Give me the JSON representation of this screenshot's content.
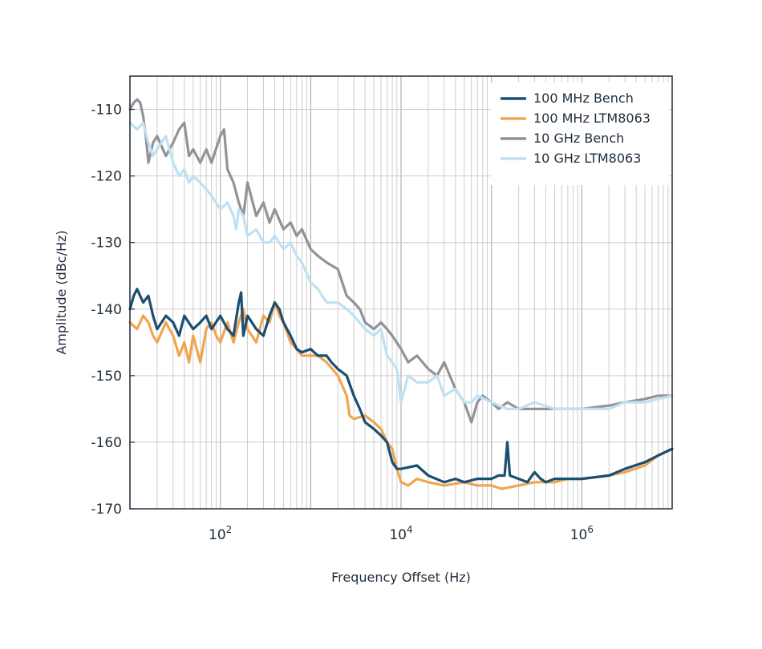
{
  "chart_data": {
    "type": "line",
    "title": "",
    "xlabel": "Frequency Offset (Hz)",
    "ylabel": "Amplitude (dBc/Hz)",
    "xscale": "log",
    "xlim": [
      10,
      10000000
    ],
    "ylim": [
      -170,
      -105
    ],
    "x_tick_labels": [
      {
        "value": 100,
        "base": "10",
        "exp": "2"
      },
      {
        "value": 10000,
        "base": "10",
        "exp": "4"
      },
      {
        "value": 1000000,
        "base": "10",
        "exp": "6"
      }
    ],
    "y_ticks": [
      -110,
      -120,
      -130,
      -140,
      -150,
      -160,
      -170
    ],
    "y_tick_labels": [
      "-110",
      "-120",
      "-130",
      "-140",
      "-150",
      "-160",
      "-170"
    ],
    "grid": true,
    "legend": "top-right",
    "series": [
      {
        "name": "100 MHz Bench",
        "color": "#1b4f72",
        "points": [
          [
            10,
            -140
          ],
          [
            11,
            -138
          ],
          [
            12,
            -137
          ],
          [
            14,
            -139
          ],
          [
            16,
            -138
          ],
          [
            18,
            -141
          ],
          [
            20,
            -143
          ],
          [
            25,
            -141
          ],
          [
            30,
            -142
          ],
          [
            35,
            -144
          ],
          [
            40,
            -141
          ],
          [
            50,
            -143
          ],
          [
            60,
            -142
          ],
          [
            70,
            -141
          ],
          [
            80,
            -143
          ],
          [
            100,
            -141
          ],
          [
            120,
            -143
          ],
          [
            140,
            -144
          ],
          [
            160,
            -139
          ],
          [
            170,
            -137.5
          ],
          [
            180,
            -144
          ],
          [
            200,
            -141
          ],
          [
            250,
            -143
          ],
          [
            300,
            -144
          ],
          [
            350,
            -141
          ],
          [
            400,
            -139
          ],
          [
            450,
            -140
          ],
          [
            500,
            -142
          ],
          [
            600,
            -144
          ],
          [
            700,
            -146
          ],
          [
            800,
            -146.5
          ],
          [
            1000,
            -146
          ],
          [
            1200,
            -147
          ],
          [
            1500,
            -147
          ],
          [
            1700,
            -148
          ],
          [
            2000,
            -149
          ],
          [
            2500,
            -150
          ],
          [
            3000,
            -153
          ],
          [
            3500,
            -155
          ],
          [
            4000,
            -157
          ],
          [
            5000,
            -158
          ],
          [
            6000,
            -159
          ],
          [
            7000,
            -160
          ],
          [
            8000,
            -163
          ],
          [
            9000,
            -164
          ],
          [
            10000,
            -164
          ],
          [
            15000,
            -163.5
          ],
          [
            20000,
            -165
          ],
          [
            30000,
            -166
          ],
          [
            40000,
            -165.5
          ],
          [
            50000,
            -166
          ],
          [
            70000,
            -165.5
          ],
          [
            100000,
            -165.5
          ],
          [
            120000,
            -165
          ],
          [
            140000,
            -165
          ],
          [
            150000,
            -160
          ],
          [
            160000,
            -165
          ],
          [
            200000,
            -165.5
          ],
          [
            250000,
            -166
          ],
          [
            300000,
            -164.5
          ],
          [
            350000,
            -165.5
          ],
          [
            400000,
            -166
          ],
          [
            500000,
            -165.5
          ],
          [
            700000,
            -165.5
          ],
          [
            1000000,
            -165.5
          ],
          [
            2000000,
            -165
          ],
          [
            3000000,
            -164
          ],
          [
            5000000,
            -163
          ],
          [
            7000000,
            -162
          ],
          [
            10000000,
            -161
          ]
        ]
      },
      {
        "name": "100 MHz LTM8063",
        "color": "#f0a550",
        "points": [
          [
            10,
            -142
          ],
          [
            12,
            -143
          ],
          [
            14,
            -141
          ],
          [
            16,
            -142
          ],
          [
            18,
            -144
          ],
          [
            20,
            -145
          ],
          [
            25,
            -142
          ],
          [
            30,
            -144
          ],
          [
            35,
            -147
          ],
          [
            40,
            -145
          ],
          [
            45,
            -148
          ],
          [
            50,
            -144
          ],
          [
            60,
            -148
          ],
          [
            70,
            -143
          ],
          [
            80,
            -142
          ],
          [
            90,
            -144
          ],
          [
            100,
            -145
          ],
          [
            120,
            -142
          ],
          [
            140,
            -145
          ],
          [
            160,
            -142
          ],
          [
            180,
            -140
          ],
          [
            200,
            -143
          ],
          [
            250,
            -145
          ],
          [
            300,
            -141
          ],
          [
            350,
            -142
          ],
          [
            400,
            -139
          ],
          [
            450,
            -141
          ],
          [
            500,
            -142
          ],
          [
            600,
            -145
          ],
          [
            700,
            -146
          ],
          [
            800,
            -147
          ],
          [
            1000,
            -147
          ],
          [
            1200,
            -147
          ],
          [
            1500,
            -148
          ],
          [
            2000,
            -150
          ],
          [
            2500,
            -153
          ],
          [
            2700,
            -156
          ],
          [
            3000,
            -156.5
          ],
          [
            4000,
            -156
          ],
          [
            5000,
            -157
          ],
          [
            6000,
            -158
          ],
          [
            7000,
            -160
          ],
          [
            8000,
            -161
          ],
          [
            9000,
            -164
          ],
          [
            10000,
            -166
          ],
          [
            12000,
            -166.5
          ],
          [
            15000,
            -165.5
          ],
          [
            20000,
            -166
          ],
          [
            30000,
            -166.5
          ],
          [
            50000,
            -166
          ],
          [
            70000,
            -166.5
          ],
          [
            100000,
            -166.5
          ],
          [
            130000,
            -167
          ],
          [
            200000,
            -166.5
          ],
          [
            300000,
            -166
          ],
          [
            500000,
            -166
          ],
          [
            700000,
            -165.5
          ],
          [
            1000000,
            -165.5
          ],
          [
            2000000,
            -165
          ],
          [
            3000000,
            -164.5
          ],
          [
            5000000,
            -163.5
          ],
          [
            7000000,
            -162
          ],
          [
            10000000,
            -161
          ]
        ]
      },
      {
        "name": "10 GHz Bench",
        "color": "#929396",
        "points": [
          [
            10,
            -110
          ],
          [
            11,
            -109
          ],
          [
            12,
            -108.5
          ],
          [
            13,
            -109
          ],
          [
            14,
            -111
          ],
          [
            15,
            -114
          ],
          [
            16,
            -118
          ],
          [
            18,
            -115
          ],
          [
            20,
            -114
          ],
          [
            25,
            -117
          ],
          [
            30,
            -115
          ],
          [
            35,
            -113
          ],
          [
            40,
            -112
          ],
          [
            45,
            -117
          ],
          [
            50,
            -116
          ],
          [
            60,
            -118
          ],
          [
            70,
            -116
          ],
          [
            80,
            -118
          ],
          [
            100,
            -114
          ],
          [
            110,
            -113
          ],
          [
            120,
            -119
          ],
          [
            140,
            -121
          ],
          [
            160,
            -124
          ],
          [
            180,
            -126
          ],
          [
            200,
            -121
          ],
          [
            250,
            -126
          ],
          [
            300,
            -124
          ],
          [
            350,
            -127
          ],
          [
            400,
            -125
          ],
          [
            500,
            -128
          ],
          [
            600,
            -127
          ],
          [
            700,
            -129
          ],
          [
            800,
            -128
          ],
          [
            1000,
            -131
          ],
          [
            1200,
            -132
          ],
          [
            1500,
            -133
          ],
          [
            2000,
            -134
          ],
          [
            2500,
            -138
          ],
          [
            3000,
            -139
          ],
          [
            3500,
            -140
          ],
          [
            4000,
            -142
          ],
          [
            5000,
            -143
          ],
          [
            6000,
            -142
          ],
          [
            7000,
            -143
          ],
          [
            8000,
            -144
          ],
          [
            10000,
            -146
          ],
          [
            12000,
            -148
          ],
          [
            15000,
            -147
          ],
          [
            20000,
            -149
          ],
          [
            25000,
            -150
          ],
          [
            30000,
            -148
          ],
          [
            40000,
            -152
          ],
          [
            50000,
            -154
          ],
          [
            60000,
            -157
          ],
          [
            70000,
            -154
          ],
          [
            80000,
            -153
          ],
          [
            100000,
            -154
          ],
          [
            120000,
            -155
          ],
          [
            150000,
            -154
          ],
          [
            200000,
            -155
          ],
          [
            300000,
            -155
          ],
          [
            500000,
            -155
          ],
          [
            700000,
            -155
          ],
          [
            1000000,
            -155
          ],
          [
            2000000,
            -154.5
          ],
          [
            3000000,
            -154
          ],
          [
            5000000,
            -153.5
          ],
          [
            7000000,
            -153
          ],
          [
            10000000,
            -153
          ]
        ]
      },
      {
        "name": "10 GHz LTM8063",
        "color": "#bfe1f3",
        "points": [
          [
            10,
            -112
          ],
          [
            12,
            -113
          ],
          [
            14,
            -112
          ],
          [
            16,
            -115
          ],
          [
            18,
            -117
          ],
          [
            20,
            -116
          ],
          [
            25,
            -114
          ],
          [
            30,
            -118
          ],
          [
            35,
            -120
          ],
          [
            40,
            -119
          ],
          [
            45,
            -121
          ],
          [
            50,
            -120
          ],
          [
            60,
            -121
          ],
          [
            70,
            -122
          ],
          [
            80,
            -123
          ],
          [
            100,
            -125
          ],
          [
            120,
            -124
          ],
          [
            140,
            -126
          ],
          [
            150,
            -128
          ],
          [
            160,
            -125
          ],
          [
            180,
            -126
          ],
          [
            200,
            -129
          ],
          [
            250,
            -128
          ],
          [
            300,
            -130
          ],
          [
            350,
            -130
          ],
          [
            400,
            -129
          ],
          [
            500,
            -131
          ],
          [
            600,
            -130
          ],
          [
            700,
            -132
          ],
          [
            800,
            -133
          ],
          [
            1000,
            -136
          ],
          [
            1200,
            -137
          ],
          [
            1500,
            -139
          ],
          [
            2000,
            -139
          ],
          [
            2500,
            -140
          ],
          [
            3000,
            -141
          ],
          [
            4000,
            -143
          ],
          [
            5000,
            -144
          ],
          [
            6000,
            -143
          ],
          [
            7000,
            -147
          ],
          [
            8000,
            -148
          ],
          [
            9000,
            -149
          ],
          [
            10000,
            -154
          ],
          [
            12000,
            -150
          ],
          [
            15000,
            -151
          ],
          [
            20000,
            -151
          ],
          [
            25000,
            -150
          ],
          [
            30000,
            -153
          ],
          [
            40000,
            -152
          ],
          [
            50000,
            -154
          ],
          [
            60000,
            -154
          ],
          [
            70000,
            -153
          ],
          [
            100000,
            -154
          ],
          [
            150000,
            -155
          ],
          [
            200000,
            -155
          ],
          [
            300000,
            -154
          ],
          [
            500000,
            -155
          ],
          [
            700000,
            -155
          ],
          [
            1000000,
            -155
          ],
          [
            2000000,
            -155
          ],
          [
            3000000,
            -154
          ],
          [
            5000000,
            -154
          ],
          [
            7000000,
            -153.5
          ],
          [
            10000000,
            -153
          ]
        ]
      }
    ]
  }
}
